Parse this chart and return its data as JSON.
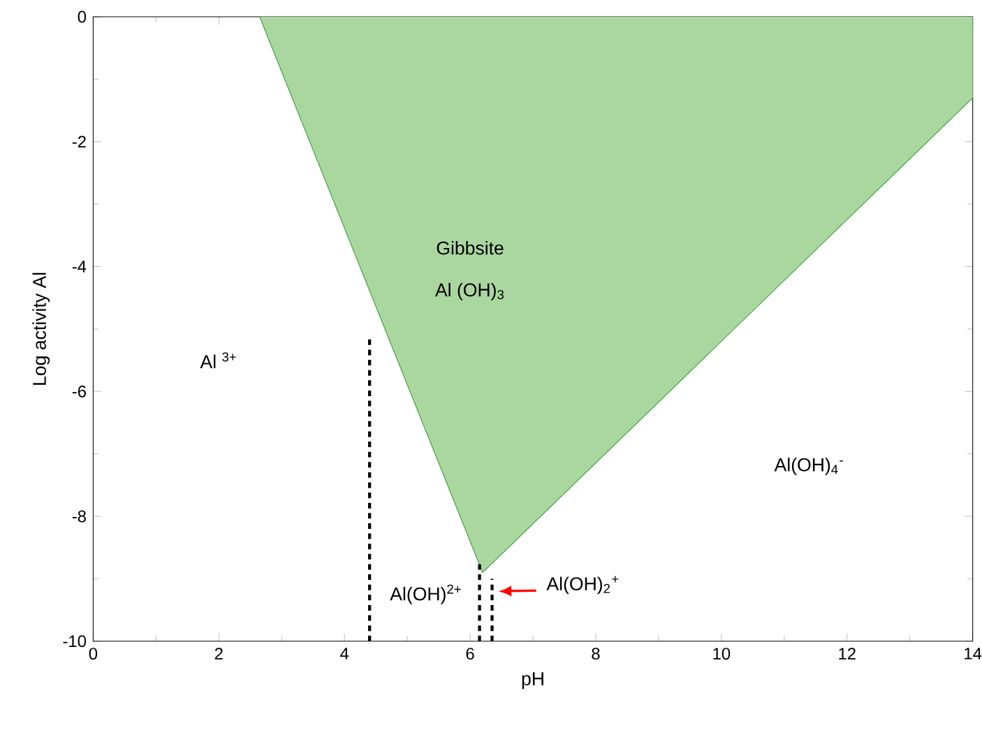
{
  "chart_data": {
    "type": "line",
    "xlabel": "pH",
    "ylabel": "Log activity Al",
    "xlim": [
      0,
      14
    ],
    "ylim": [
      -10,
      0
    ],
    "xticks": [
      0,
      2,
      4,
      6,
      8,
      10,
      12,
      14
    ],
    "yticks": [
      -10,
      -8,
      -6,
      -4,
      -2,
      0
    ],
    "grid": false,
    "series": [
      {
        "color": "#339933",
        "line_style": "solid",
        "x": [
          2.65,
          6.2,
          14
        ],
        "values": [
          0,
          -8.9,
          -1.3
        ],
        "lower": [
          0,
          -8.9,
          -1.3
        ],
        "upper": [
          0,
          0,
          0
        ]
      },
      {
        "color": "#000000",
        "line_style": "dashed",
        "x": [
          4.4,
          4.4
        ],
        "values": [
          -10,
          -5.1
        ]
      },
      {
        "color": "#000000",
        "line_style": "dashed",
        "x": [
          6.15,
          6.15
        ],
        "values": [
          -10,
          -8.7
        ]
      },
      {
        "color": "#000000",
        "line_style": "dashed",
        "x": [
          6.35,
          6.35
        ],
        "values": [
          -10,
          -9.0
        ]
      }
    ],
    "annotations": [
      "Al $^{3+}$",
      "Gibbsite",
      "Al (OH)$_{3}$",
      "Al(OH)$_{4}$$^{-}$",
      "Al(OH)$^{2+}$",
      "Al(OH)$_{2}$$^{+}$"
    ]
  }
}
